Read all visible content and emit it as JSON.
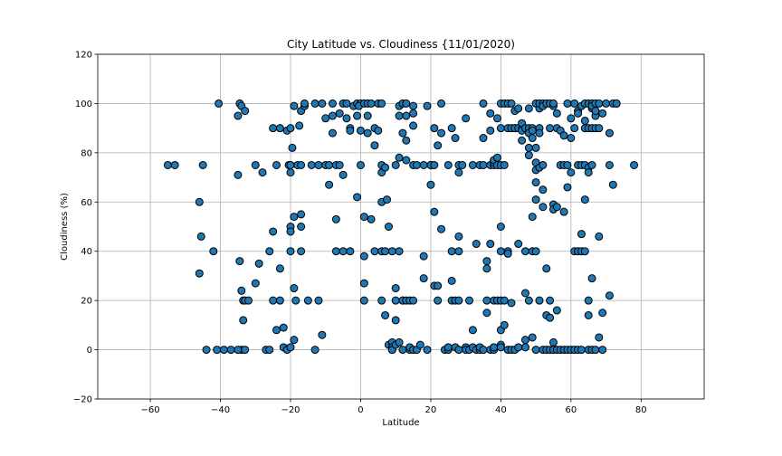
{
  "chart_data": {
    "type": "scatter",
    "title": "City Latitude vs. Cloudiness {11/01/2020)",
    "xlabel": "Latitude",
    "ylabel": "Cloudiness (%)",
    "xlim": [
      -75,
      98
    ],
    "ylim": [
      -20,
      120
    ],
    "xticks": [
      -60,
      -40,
      -20,
      0,
      20,
      40,
      60,
      80
    ],
    "yticks": [
      -20,
      0,
      20,
      40,
      60,
      80,
      100,
      120
    ],
    "grid": true,
    "marker_color": "#1f77b4",
    "marker_edge": "#000000",
    "points": [
      [
        -55,
        75
      ],
      [
        -53,
        75
      ],
      [
        -46,
        60
      ],
      [
        -45.5,
        46
      ],
      [
        -45,
        75
      ],
      [
        -46,
        31
      ],
      [
        -44,
        0
      ],
      [
        -42,
        40
      ],
      [
        -41,
        0
      ],
      [
        -40.5,
        100
      ],
      [
        -39,
        0
      ],
      [
        -37,
        0
      ],
      [
        -35,
        71
      ],
      [
        -35,
        95
      ],
      [
        -34.5,
        100
      ],
      [
        -34,
        99
      ],
      [
        -33,
        97
      ],
      [
        -34.5,
        36
      ],
      [
        -34,
        24
      ],
      [
        -33.5,
        20
      ],
      [
        -33,
        20
      ],
      [
        -32,
        20
      ],
      [
        -33.5,
        12
      ],
      [
        -34,
        0
      ],
      [
        -35,
        0
      ],
      [
        -33,
        0
      ],
      [
        -30,
        75
      ],
      [
        -30,
        27
      ],
      [
        -29,
        35
      ],
      [
        -28,
        72
      ],
      [
        -27,
        0
      ],
      [
        -26,
        0
      ],
      [
        -26,
        40
      ],
      [
        -25,
        48
      ],
      [
        -25,
        20
      ],
      [
        -24,
        75
      ],
      [
        -25,
        90
      ],
      [
        -24,
        8
      ],
      [
        -23,
        90
      ],
      [
        -23,
        33
      ],
      [
        -23,
        20
      ],
      [
        -22,
        9
      ],
      [
        -22,
        1
      ],
      [
        -21,
        0
      ],
      [
        -21,
        89
      ],
      [
        -20.5,
        75
      ],
      [
        -20,
        90
      ],
      [
        -20,
        75
      ],
      [
        -20,
        75
      ],
      [
        -20,
        72
      ],
      [
        -20,
        50
      ],
      [
        -20,
        48
      ],
      [
        -20,
        40
      ],
      [
        -20,
        1
      ],
      [
        -19.5,
        82
      ],
      [
        -19,
        54
      ],
      [
        -19,
        99
      ],
      [
        -19,
        25
      ],
      [
        -19,
        4
      ],
      [
        -18.5,
        20
      ],
      [
        -18,
        75
      ],
      [
        -17.5,
        91
      ],
      [
        -17,
        97
      ],
      [
        -17,
        75
      ],
      [
        -17,
        55
      ],
      [
        -17,
        50
      ],
      [
        -17,
        40
      ],
      [
        -16,
        99
      ],
      [
        -16,
        100
      ],
      [
        -15,
        20
      ],
      [
        -14,
        75
      ],
      [
        -13,
        100
      ],
      [
        -12,
        75
      ],
      [
        -13,
        0
      ],
      [
        -12,
        20
      ],
      [
        -11,
        100
      ],
      [
        -11,
        6
      ],
      [
        -10,
        75
      ],
      [
        -10,
        94
      ],
      [
        -9,
        75
      ],
      [
        -9,
        67
      ],
      [
        -8,
        100
      ],
      [
        -8,
        95
      ],
      [
        -8,
        88
      ],
      [
        -7,
        40
      ],
      [
        -7,
        53
      ],
      [
        -7,
        75
      ],
      [
        -6,
        75
      ],
      [
        -6,
        96
      ],
      [
        -5,
        40
      ],
      [
        -5,
        71
      ],
      [
        -5,
        100
      ],
      [
        -4,
        94
      ],
      [
        -4,
        100
      ],
      [
        -3,
        90
      ],
      [
        -3,
        89
      ],
      [
        -3,
        40
      ],
      [
        -2,
        99
      ],
      [
        -1,
        100
      ],
      [
        -1,
        62
      ],
      [
        -1,
        95
      ],
      [
        0,
        100
      ],
      [
        0,
        75
      ],
      [
        0,
        89
      ],
      [
        -0.5,
        99
      ],
      [
        1,
        100
      ],
      [
        1,
        27
      ],
      [
        1,
        38
      ],
      [
        1,
        54
      ],
      [
        1,
        20
      ],
      [
        2,
        100
      ],
      [
        2,
        95
      ],
      [
        2,
        88
      ],
      [
        3,
        53
      ],
      [
        3,
        100
      ],
      [
        4,
        83
      ],
      [
        4,
        90
      ],
      [
        4,
        40
      ],
      [
        5,
        100
      ],
      [
        5,
        89
      ],
      [
        6,
        40
      ],
      [
        6,
        100
      ],
      [
        6,
        20
      ],
      [
        6,
        60
      ],
      [
        6,
        72
      ],
      [
        6,
        75
      ],
      [
        7,
        40
      ],
      [
        7,
        74
      ],
      [
        7,
        14
      ],
      [
        7.5,
        61
      ],
      [
        8,
        50
      ],
      [
        8,
        2
      ],
      [
        9,
        40
      ],
      [
        9,
        0
      ],
      [
        9,
        3
      ],
      [
        9,
        1
      ],
      [
        9,
        0
      ],
      [
        10,
        75
      ],
      [
        10,
        12
      ],
      [
        10,
        25
      ],
      [
        10,
        20
      ],
      [
        10,
        2
      ],
      [
        11,
        95
      ],
      [
        11,
        99
      ],
      [
        11,
        40
      ],
      [
        11,
        3
      ],
      [
        11,
        78
      ],
      [
        12,
        88
      ],
      [
        12,
        20
      ],
      [
        12,
        20
      ],
      [
        12,
        0
      ],
      [
        12,
        100
      ],
      [
        13,
        100
      ],
      [
        13,
        77
      ],
      [
        13,
        85
      ],
      [
        13,
        95
      ],
      [
        13,
        20
      ],
      [
        14,
        20
      ],
      [
        14,
        0
      ],
      [
        14,
        1
      ],
      [
        15,
        96
      ],
      [
        15,
        75
      ],
      [
        15,
        99
      ],
      [
        15,
        20
      ],
      [
        15,
        0
      ],
      [
        15,
        91
      ],
      [
        16,
        75
      ],
      [
        16,
        0
      ],
      [
        17,
        2
      ],
      [
        18,
        75
      ],
      [
        18,
        38
      ],
      [
        18,
        29
      ],
      [
        19,
        0
      ],
      [
        19,
        99
      ],
      [
        20,
        75
      ],
      [
        20,
        75
      ],
      [
        20,
        67
      ],
      [
        21,
        56
      ],
      [
        21,
        26
      ],
      [
        21,
        90
      ],
      [
        21,
        75
      ],
      [
        22,
        83
      ],
      [
        22,
        26
      ],
      [
        22,
        20
      ],
      [
        23,
        88
      ],
      [
        23,
        49
      ],
      [
        23,
        100
      ],
      [
        24,
        0
      ],
      [
        25,
        75
      ],
      [
        25,
        0
      ],
      [
        25,
        1
      ],
      [
        26,
        40
      ],
      [
        26,
        90
      ],
      [
        26,
        20
      ],
      [
        26,
        28
      ],
      [
        27,
        86
      ],
      [
        27,
        20
      ],
      [
        27,
        1
      ],
      [
        28,
        72
      ],
      [
        28,
        40
      ],
      [
        28,
        46
      ],
      [
        28,
        75
      ],
      [
        28,
        0
      ],
      [
        28,
        20
      ],
      [
        29,
        75
      ],
      [
        30,
        1
      ],
      [
        30,
        94
      ],
      [
        30,
        0
      ],
      [
        31,
        20
      ],
      [
        31,
        0
      ],
      [
        32,
        8
      ],
      [
        32,
        75
      ],
      [
        32,
        1
      ],
      [
        33,
        0
      ],
      [
        33,
        43
      ],
      [
        34,
        0
      ],
      [
        34,
        75
      ],
      [
        34,
        1
      ],
      [
        35,
        75
      ],
      [
        35,
        100
      ],
      [
        35,
        86
      ],
      [
        35,
        0
      ],
      [
        36,
        33
      ],
      [
        36,
        36
      ],
      [
        36,
        20
      ],
      [
        36,
        15
      ],
      [
        37,
        0
      ],
      [
        37,
        75
      ],
      [
        37,
        89
      ],
      [
        37,
        43
      ],
      [
        37,
        96
      ],
      [
        38,
        75
      ],
      [
        38,
        20
      ],
      [
        38,
        0
      ],
      [
        38,
        76
      ],
      [
        38,
        77
      ],
      [
        38,
        1
      ],
      [
        39,
        78
      ],
      [
        39,
        75
      ],
      [
        39,
        20
      ],
      [
        39,
        94
      ],
      [
        40,
        100
      ],
      [
        40,
        75
      ],
      [
        40,
        90
      ],
      [
        40,
        50
      ],
      [
        40,
        40
      ],
      [
        40,
        20
      ],
      [
        40,
        8
      ],
      [
        40,
        2
      ],
      [
        40,
        1
      ],
      [
        41,
        100
      ],
      [
        41,
        20
      ],
      [
        41,
        75
      ],
      [
        41,
        10
      ],
      [
        42,
        40
      ],
      [
        42,
        39
      ],
      [
        42,
        90
      ],
      [
        42,
        100
      ],
      [
        42,
        0
      ],
      [
        43,
        90
      ],
      [
        43,
        100
      ],
      [
        43,
        0
      ],
      [
        43,
        19
      ],
      [
        44,
        90
      ],
      [
        44,
        0
      ],
      [
        44,
        97
      ],
      [
        44,
        90
      ],
      [
        45,
        90
      ],
      [
        45,
        43
      ],
      [
        45,
        1
      ],
      [
        45,
        98
      ],
      [
        46,
        85
      ],
      [
        46,
        90
      ],
      [
        46,
        89
      ],
      [
        46,
        92
      ],
      [
        47,
        90
      ],
      [
        47,
        23
      ],
      [
        47,
        40
      ],
      [
        47,
        4
      ],
      [
        47,
        1
      ],
      [
        48,
        79
      ],
      [
        48,
        90
      ],
      [
        48,
        98
      ],
      [
        48,
        88
      ],
      [
        48,
        82
      ],
      [
        48,
        20
      ],
      [
        49,
        54
      ],
      [
        49,
        86
      ],
      [
        49,
        90
      ],
      [
        49,
        89
      ],
      [
        49,
        40
      ],
      [
        49,
        5
      ],
      [
        50,
        100
      ],
      [
        50,
        40
      ],
      [
        50,
        68
      ],
      [
        50,
        61
      ],
      [
        50,
        76
      ],
      [
        50,
        82
      ],
      [
        50,
        73
      ],
      [
        50,
        0
      ],
      [
        51,
        98
      ],
      [
        51,
        74
      ],
      [
        51,
        100
      ],
      [
        51,
        90
      ],
      [
        51,
        88
      ],
      [
        51,
        20
      ],
      [
        52,
        100
      ],
      [
        52,
        99
      ],
      [
        52,
        75
      ],
      [
        52,
        65
      ],
      [
        52,
        58
      ],
      [
        52,
        0
      ],
      [
        53,
        33
      ],
      [
        53,
        14
      ],
      [
        53,
        100
      ],
      [
        53,
        0
      ],
      [
        54,
        90
      ],
      [
        54,
        100
      ],
      [
        54,
        20
      ],
      [
        54,
        0
      ],
      [
        54,
        13
      ],
      [
        55,
        99
      ],
      [
        55,
        100
      ],
      [
        55,
        59
      ],
      [
        55,
        57
      ],
      [
        55,
        3
      ],
      [
        55,
        0
      ],
      [
        56,
        96
      ],
      [
        56,
        90
      ],
      [
        56,
        16
      ],
      [
        56,
        0
      ],
      [
        56,
        58
      ],
      [
        57,
        75
      ],
      [
        57,
        89
      ],
      [
        57,
        0
      ],
      [
        58,
        56
      ],
      [
        58,
        87
      ],
      [
        58,
        75
      ],
      [
        58,
        0
      ],
      [
        59,
        100
      ],
      [
        59,
        66
      ],
      [
        59,
        75
      ],
      [
        59,
        0
      ],
      [
        60,
        94
      ],
      [
        60,
        72
      ],
      [
        60,
        86
      ],
      [
        60,
        0
      ],
      [
        61,
        90
      ],
      [
        61,
        100
      ],
      [
        61,
        0
      ],
      [
        61,
        40
      ],
      [
        62,
        97
      ],
      [
        62,
        75
      ],
      [
        62,
        96
      ],
      [
        62,
        40
      ],
      [
        62,
        0
      ],
      [
        63,
        99
      ],
      [
        63,
        75
      ],
      [
        63,
        47
      ],
      [
        63,
        40
      ],
      [
        63,
        0
      ],
      [
        64,
        100
      ],
      [
        64,
        90
      ],
      [
        64,
        93
      ],
      [
        64,
        75
      ],
      [
        64,
        61
      ],
      [
        64,
        40
      ],
      [
        65,
        100
      ],
      [
        65,
        90
      ],
      [
        65,
        74
      ],
      [
        65,
        72
      ],
      [
        65,
        20
      ],
      [
        65,
        14
      ],
      [
        65,
        0
      ],
      [
        66,
        100
      ],
      [
        66,
        98
      ],
      [
        66,
        99
      ],
      [
        66,
        90
      ],
      [
        66,
        75
      ],
      [
        66,
        29
      ],
      [
        66,
        0
      ],
      [
        67,
        100
      ],
      [
        67,
        95
      ],
      [
        67,
        97
      ],
      [
        67,
        90
      ],
      [
        67,
        0
      ],
      [
        68,
        100
      ],
      [
        68,
        90
      ],
      [
        68,
        46
      ],
      [
        68,
        5
      ],
      [
        69,
        96
      ],
      [
        69,
        15
      ],
      [
        69,
        0
      ],
      [
        70,
        100
      ],
      [
        71,
        22
      ],
      [
        71,
        75
      ],
      [
        71,
        88
      ],
      [
        72,
        100
      ],
      [
        72,
        67
      ],
      [
        73,
        100
      ],
      [
        73,
        100
      ],
      [
        78,
        75
      ]
    ]
  }
}
